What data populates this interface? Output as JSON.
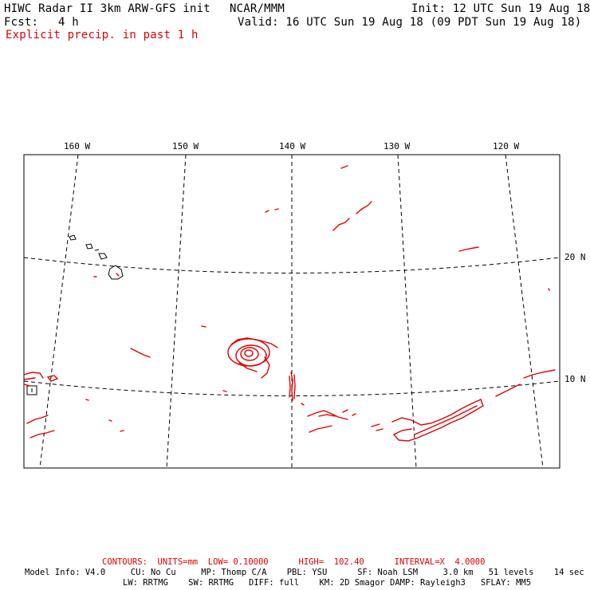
{
  "header": {
    "title": "HIWC Radar II 3km ARW-GFS init",
    "org": "NCAR/MMM",
    "init": "Init: 12 UTC Sun 19 Aug 18",
    "fcst_label": "Fcst:",
    "fcst_value": "4 h",
    "valid": "Valid: 16 UTC Sun 19 Aug 18 (09 PDT Sun 19 Aug 18)",
    "field": "Explicit precip. in past 1 h"
  },
  "map": {
    "lon_labels": [
      "160 W",
      "150 W",
      "140 W",
      "130 W",
      "120 W"
    ],
    "lat_labels": [
      "20 N",
      "10 N"
    ],
    "colors": {
      "frame": "#000000",
      "coast": "#000000",
      "precip": "#e00000"
    }
  },
  "footer": {
    "contours": "CONTOURS:  UNITS=mm  LOW= 0.10000      HIGH=  102.40      INTERVAL=X  4.0000",
    "model_line1": "Model Info: V4.0     CU: No Cu     MP: Thomp C/A    PBL: YSU      SF: Noah LSM     3.0 km   51 levels    14 sec",
    "model_line2": "LW: RRTMG    SW: RRTMG   DIFF: full    KM: 2D Smagor DAMP: Rayleigh3   SFLAY: MM5"
  }
}
